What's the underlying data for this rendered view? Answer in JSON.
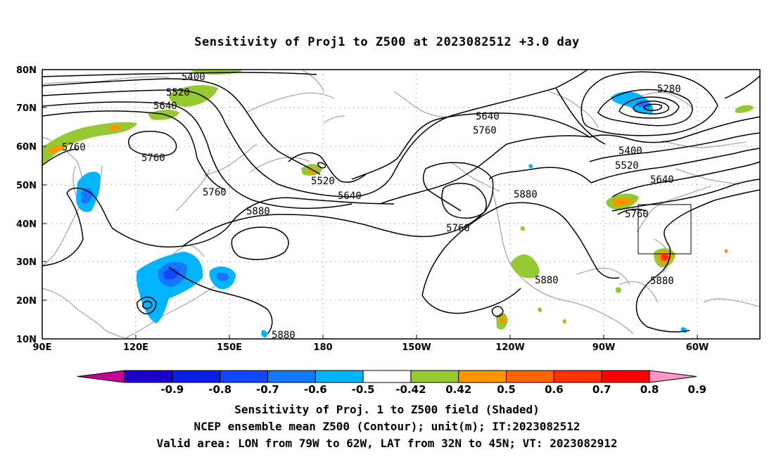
{
  "title": "Sensitivity of Proj1 to Z500 at 2023082512 +3.0 day",
  "lat_labels": [
    "80N",
    "70N",
    "60N",
    "50N",
    "40N",
    "30N",
    "20N",
    "10N"
  ],
  "lon_labels": [
    "90E",
    "120E",
    "150E",
    "180",
    "150W",
    "120W",
    "90W",
    "60W"
  ],
  "contour_labels": [
    "5400",
    "5520",
    "5640",
    "5760",
    "5760",
    "5520",
    "5640",
    "5760",
    "5880",
    "5760",
    "5280",
    "5400",
    "5520",
    "5640",
    "5880",
    "5760",
    "5880",
    "5880",
    "5880",
    "5640",
    "5760"
  ],
  "colorbar": {
    "labels": [
      "-0.9",
      "-0.8",
      "-0.7",
      "-0.6",
      "-0.5",
      "-0.42",
      "0.42",
      "0.5",
      "0.6",
      "0.7",
      "0.8",
      "0.9"
    ],
    "colors": [
      "#c8009a",
      "#1a00c8",
      "#0a1ee8",
      "#1446ff",
      "#1478ff",
      "#00b4ff",
      "#ffffff",
      "#96c832",
      "#ff9600",
      "#ff6400",
      "#ff3200",
      "#ff0000",
      "#ff96c8"
    ]
  },
  "captions": [
    "Sensitivity of Proj. 1 to Z500 field (Shaded)",
    "NCEP ensemble mean Z500 (Contour); unit(m); IT:2023082512",
    "Valid area: LON from 79W to 62W, LAT from 32N to 45N; VT: 2023082912"
  ]
}
